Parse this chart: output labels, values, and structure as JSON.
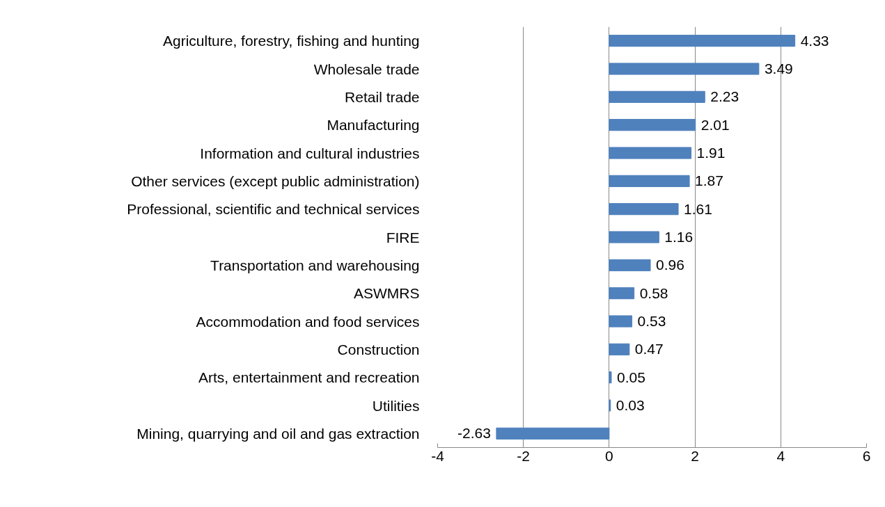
{
  "chart_data": {
    "type": "bar",
    "orientation": "horizontal",
    "categories": [
      "Agriculture, forestry, fishing and hunting",
      "Wholesale trade",
      "Retail trade",
      "Manufacturing",
      "Information and cultural industries",
      "Other services (except public administration)",
      "Professional, scientific and technical services",
      "FIRE",
      "Transportation and warehousing",
      "ASWMRS",
      "Accommodation and food services",
      "Construction",
      "Arts, entertainment and recreation",
      "Utilities",
      "Mining, quarrying and oil and gas extraction"
    ],
    "values": [
      4.33,
      3.49,
      2.23,
      2.01,
      1.91,
      1.87,
      1.61,
      1.16,
      0.96,
      0.58,
      0.53,
      0.47,
      0.05,
      0.03,
      -2.63
    ],
    "color": "#4f81bd",
    "xlim": [
      -4,
      6
    ],
    "xticks": [
      -4,
      -2,
      0,
      2,
      4,
      6
    ],
    "grid": "x",
    "data_labels": true
  }
}
